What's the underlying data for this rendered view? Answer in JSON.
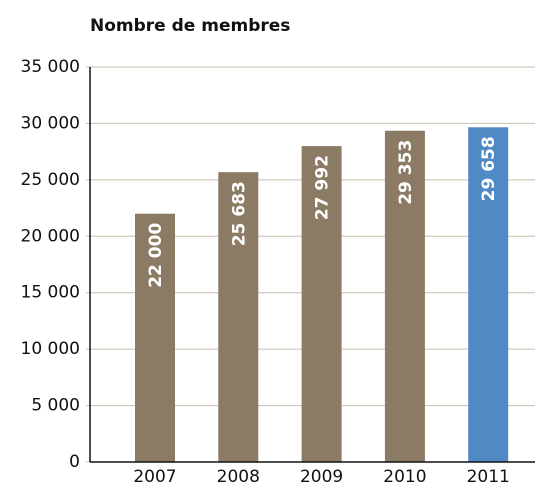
{
  "chart_data": {
    "type": "bar",
    "title": "Nombre de membres",
    "categories": [
      "2007",
      "2008",
      "2009",
      "2010",
      "2011"
    ],
    "values": [
      22000,
      25683,
      27992,
      29353,
      29658
    ],
    "value_labels": [
      "22 000",
      "25 683",
      "27 992",
      "29 353",
      "29 658"
    ],
    "colors": [
      "#8c7b64",
      "#8c7b64",
      "#8c7b64",
      "#8c7b64",
      "#4f8ac4"
    ],
    "ylim": [
      0,
      35000
    ],
    "yticks": [
      0,
      {
        "value": 5000,
        "label": "5 000"
      },
      {
        "value": 10000,
        "label": "10 000"
      },
      {
        "value": 15000,
        "label": "15 000"
      },
      {
        "value": 20000,
        "label": "20 000"
      },
      {
        "value": 25000,
        "label": "25 000"
      },
      {
        "value": 30000,
        "label": "30 000"
      },
      {
        "value": 35000,
        "label": "35 000"
      }
    ],
    "grid": true
  }
}
